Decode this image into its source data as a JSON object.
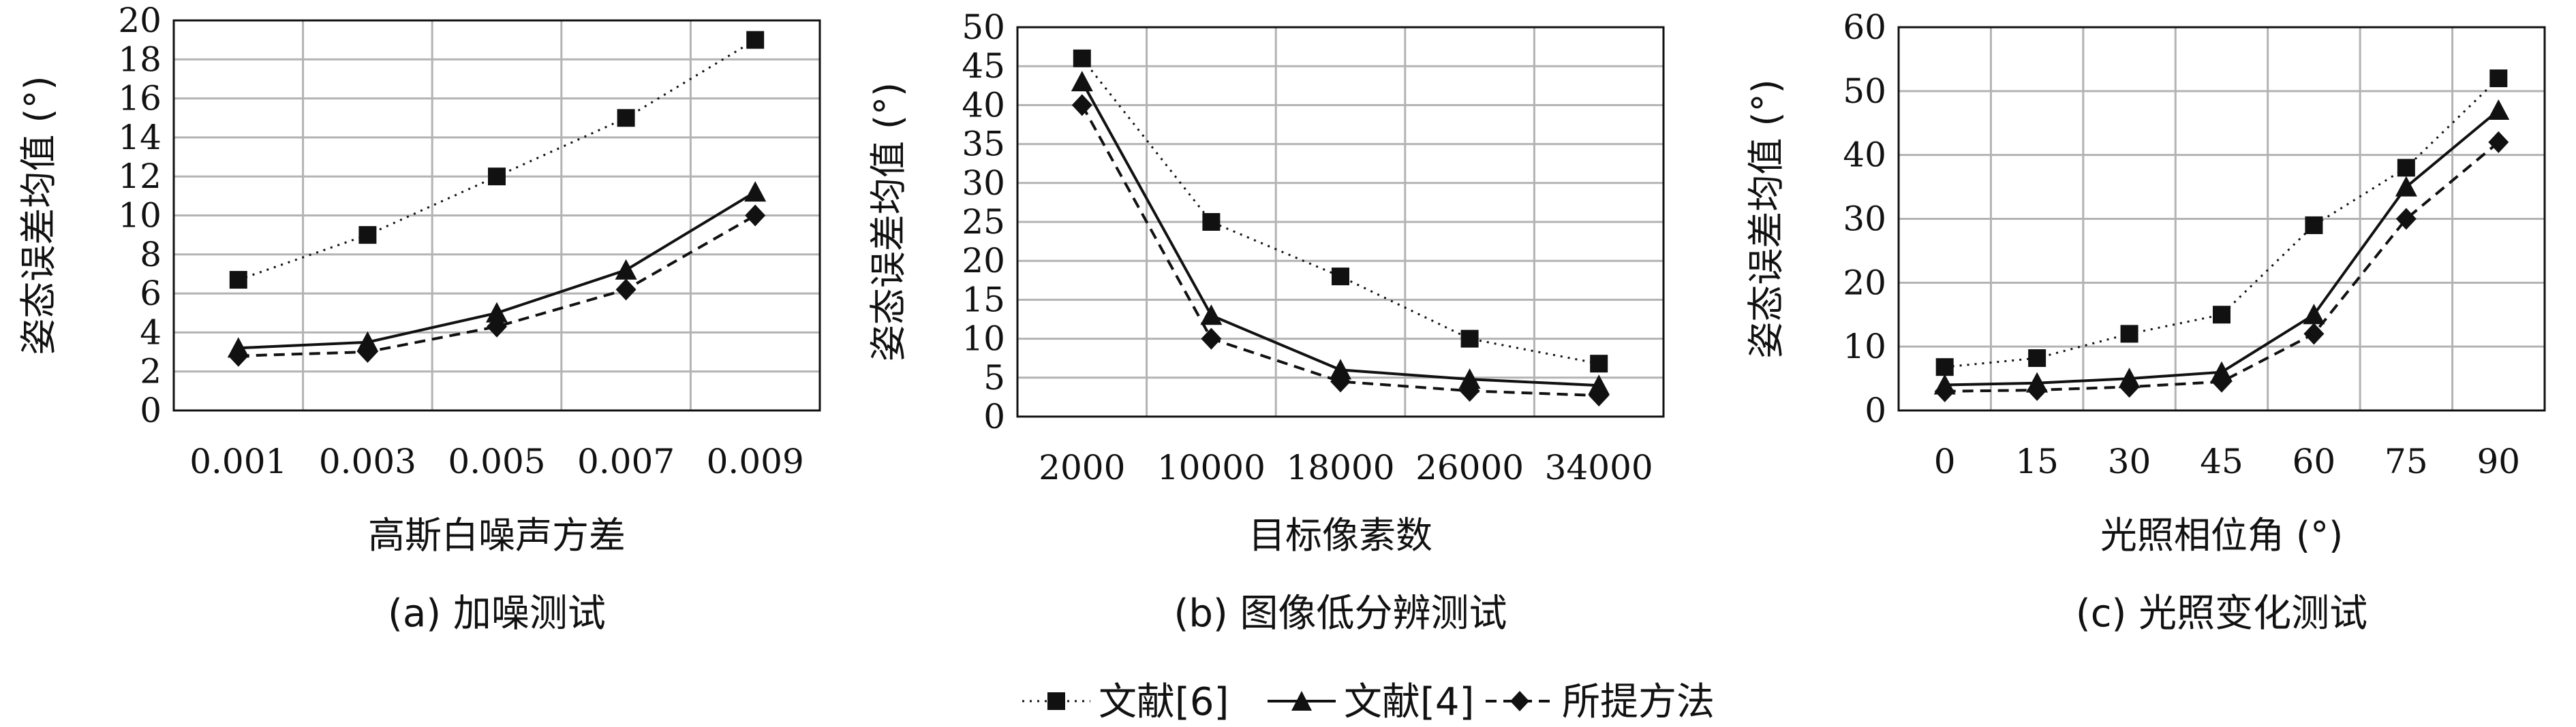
{
  "chart_data": [
    {
      "type": "line",
      "caption": "(a) 加噪测试",
      "xlabel": "高斯白噪声方差",
      "ylabel": "姿态误差均值 (°)",
      "categories": [
        "0.001",
        "0.003",
        "0.005",
        "0.007",
        "0.009"
      ],
      "yticks": [
        "0",
        "2",
        "4",
        "6",
        "8",
        "10",
        "12",
        "14",
        "16",
        "18",
        "20"
      ],
      "ylim": [
        0,
        20
      ],
      "grid": true,
      "series": [
        {
          "name": "文献[6]",
          "values": [
            6.7,
            9.0,
            12.0,
            15.0,
            19.0
          ]
        },
        {
          "name": "文献[4]",
          "values": [
            3.2,
            3.5,
            5.0,
            7.2,
            11.2
          ]
        },
        {
          "name": "所提方法",
          "values": [
            2.8,
            3.0,
            4.3,
            6.2,
            10.0
          ]
        }
      ]
    },
    {
      "type": "line",
      "caption": "(b) 图像低分辨测试",
      "xlabel": "目标像素数",
      "ylabel": "姿态误差均值 (°)",
      "categories": [
        "2000",
        "10000",
        "18000",
        "26000",
        "34000"
      ],
      "yticks": [
        "0",
        "5",
        "10",
        "15",
        "20",
        "25",
        "30",
        "35",
        "40",
        "45",
        "50"
      ],
      "ylim": [
        0,
        50
      ],
      "grid": true,
      "series": [
        {
          "name": "文献[6]",
          "values": [
            46,
            25,
            18,
            10,
            6.8
          ]
        },
        {
          "name": "文献[4]",
          "values": [
            43,
            13,
            6,
            4.8,
            4
          ]
        },
        {
          "name": "所提方法",
          "values": [
            40,
            10,
            4.5,
            3.3,
            2.7
          ]
        }
      ]
    },
    {
      "type": "line",
      "caption": "(c) 光照变化测试",
      "xlabel": "光照相位角 (°)",
      "ylabel": "姿态误差均值 (°)",
      "categories": [
        "0",
        "15",
        "30",
        "45",
        "60",
        "75",
        "90"
      ],
      "yticks": [
        "0",
        "10",
        "20",
        "30",
        "40",
        "50",
        "60"
      ],
      "ylim": [
        0,
        60
      ],
      "grid": true,
      "series": [
        {
          "name": "文献[6]",
          "values": [
            6.8,
            8.2,
            12,
            15,
            29,
            38,
            52
          ]
        },
        {
          "name": "文献[4]",
          "values": [
            4,
            4.3,
            5,
            6,
            15,
            35,
            47
          ]
        },
        {
          "name": "所提方法",
          "values": [
            3,
            3.2,
            3.7,
            4.5,
            12,
            30,
            42
          ]
        }
      ]
    }
  ],
  "legend": {
    "placement": "bottom-center",
    "items": [
      {
        "label": "文献[6]",
        "marker": "square",
        "line": "dotted"
      },
      {
        "label": "文献[4]",
        "marker": "triangle",
        "line": "solid"
      },
      {
        "label": "所提方法",
        "marker": "diamond",
        "line": "dashed"
      }
    ]
  },
  "colors": {
    "series": "#111111",
    "grid": "#b3b3b3",
    "background": "#ffffff"
  }
}
